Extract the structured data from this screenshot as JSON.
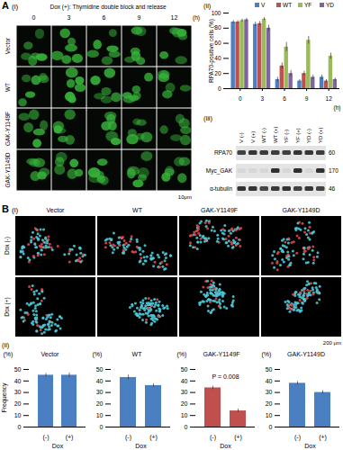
{
  "chart_data": [
    {
      "type": "bar",
      "y_label": "RPA70-positive cells (%)",
      "x_label": "(h)",
      "categories": [
        "0",
        "3",
        "6",
        "9",
        "12"
      ],
      "series": [
        {
          "name": "V",
          "color": "#4a7fc1",
          "values": [
            88,
            85,
            12,
            10,
            15
          ],
          "errors": [
            2,
            3,
            3,
            2,
            3
          ]
        },
        {
          "name": "WT",
          "color": "#c0504d",
          "values": [
            88,
            86,
            30,
            20,
            10
          ],
          "errors": [
            2,
            3,
            4,
            3,
            2
          ]
        },
        {
          "name": "YF",
          "color": "#9bbb59",
          "values": [
            90,
            92,
            55,
            64,
            43
          ],
          "errors": [
            2,
            2,
            6,
            5,
            4
          ]
        },
        {
          "name": "YD",
          "color": "#8064a2",
          "values": [
            91,
            80,
            20,
            15,
            12
          ],
          "errors": [
            2,
            4,
            4,
            3,
            2
          ]
        }
      ],
      "ylim": [
        0,
        100
      ],
      "yticks": [
        0,
        20,
        40,
        60,
        80,
        100
      ],
      "legend": "top-right"
    },
    {
      "type": "bar",
      "title": "Vector",
      "y_label": "(%)",
      "x_label": "Dox",
      "categories": [
        "(-)",
        "(+)"
      ],
      "values": [
        45,
        45
      ],
      "errors": [
        1.5,
        2
      ],
      "color": "#4a7fc1",
      "ylim": [
        0,
        50
      ],
      "yticks": [
        0,
        10,
        20,
        30,
        40,
        50
      ]
    },
    {
      "type": "bar",
      "title": "WT",
      "y_label": "(%)",
      "x_label": "Dox",
      "categories": [
        "(-)",
        "(+)"
      ],
      "values": [
        43,
        36
      ],
      "errors": [
        2,
        1.5
      ],
      "color": "#4a7fc1",
      "ylim": [
        0,
        50
      ],
      "yticks": [
        0,
        10,
        20,
        30,
        40,
        50
      ]
    },
    {
      "type": "bar",
      "title": "GAK-Y1149F",
      "y_label": "(%)",
      "x_label": "Dox",
      "categories": [
        "(-)",
        "(+)"
      ],
      "values": [
        34,
        14
      ],
      "errors": [
        1.5,
        1.5
      ],
      "color": "#c0504d",
      "ylim": [
        0,
        50
      ],
      "yticks": [
        0,
        10,
        20,
        30,
        40,
        50
      ],
      "annotation": "P = 0.008"
    },
    {
      "type": "bar",
      "title": "GAK-Y1149D",
      "y_label": "(%)",
      "x_label": "Dox",
      "categories": [
        "(-)",
        "(+)"
      ],
      "values": [
        38,
        30
      ],
      "errors": [
        1.5,
        1.5
      ],
      "color": "#4a7fc1",
      "ylim": [
        0,
        50
      ],
      "yticks": [
        0,
        10,
        20,
        30,
        40,
        50
      ]
    }
  ],
  "panel_A": {
    "label": "A",
    "sub_i": "(i)",
    "header": "Dox (+): Thymidine double block and release",
    "columns": [
      "0",
      "3",
      "6",
      "9",
      "12"
    ],
    "column_unit": "(h)",
    "rows": [
      "Vector",
      "WT",
      "GAK-Y1149F",
      "GAK-Y1149D"
    ],
    "scale_bar": "10μm",
    "sub_ii": "(ii)",
    "sub_iii": "(iii)",
    "blot": {
      "lanes": [
        "V (-)",
        "V (+)",
        "WT (-)",
        "WT (+)",
        "YF (-)",
        "YF (+)",
        "YD (-)",
        "YD (+)"
      ],
      "rows": [
        {
          "label": "RPA70",
          "marker": 60
        },
        {
          "label": "Myc_GAK",
          "marker": 170
        },
        {
          "label": "α-tubulin",
          "marker": 46
        }
      ]
    }
  },
  "panel_B": {
    "label": "B",
    "sub_i": "(i)",
    "columns": [
      "Vector",
      "WT",
      "GAK-Y1149F",
      "GAK-Y1149D"
    ],
    "rows": [
      "Dox (-)",
      "Dox (+)"
    ],
    "scale_bar": "200 μm",
    "sub_ii": "(ii)",
    "y_title": "Frequency"
  }
}
